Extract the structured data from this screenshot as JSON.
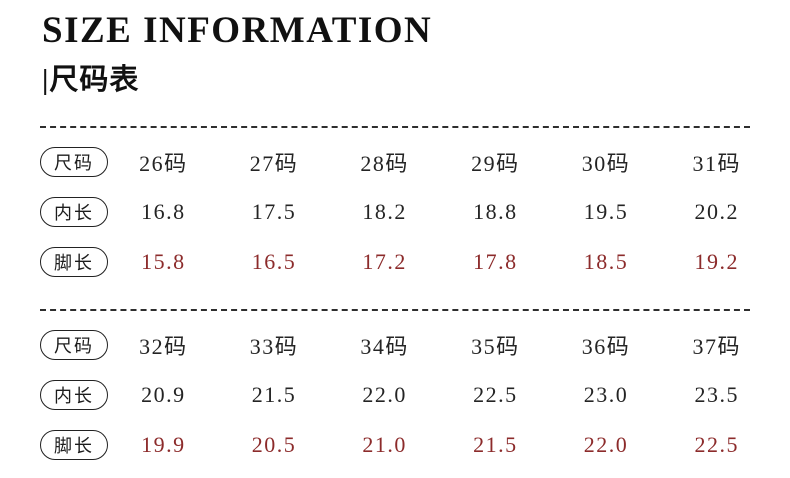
{
  "header": {
    "title": "SIZE INFORMATION",
    "subtitle": "|尺码表"
  },
  "accent_color": "#8c2b2b",
  "text_color": "#1c1c1c",
  "sections": [
    {
      "rows": [
        {
          "label": "尺码",
          "values": [
            "26码",
            "27码",
            "28码",
            "29码",
            "30码",
            "31码"
          ]
        },
        {
          "label": "内长",
          "values": [
            "16.8",
            "17.5",
            "18.2",
            "18.8",
            "19.5",
            "20.2"
          ]
        },
        {
          "label": "脚长",
          "values": [
            "15.8",
            "16.5",
            "17.2",
            "17.8",
            "18.5",
            "19.2"
          ]
        }
      ]
    },
    {
      "rows": [
        {
          "label": "尺码",
          "values": [
            "32码",
            "33码",
            "34码",
            "35码",
            "36码",
            "37码"
          ]
        },
        {
          "label": "内长",
          "values": [
            "20.9",
            "21.5",
            "22.0",
            "22.5",
            "23.0",
            "23.5"
          ]
        },
        {
          "label": "脚长",
          "values": [
            "19.9",
            "20.5",
            "21.0",
            "21.5",
            "22.0",
            "22.5"
          ]
        }
      ]
    }
  ],
  "chart_data": {
    "type": "table",
    "title": "SIZE INFORMATION |尺码表",
    "tables": [
      {
        "columns": [
          "26码",
          "27码",
          "28码",
          "29码",
          "30码",
          "31码"
        ],
        "rows": [
          {
            "label": "内长",
            "values": [
              16.8,
              17.5,
              18.2,
              18.8,
              19.5,
              20.2
            ]
          },
          {
            "label": "脚长",
            "values": [
              15.8,
              16.5,
              17.2,
              17.8,
              18.5,
              19.2
            ]
          }
        ]
      },
      {
        "columns": [
          "32码",
          "33码",
          "34码",
          "35码",
          "36码",
          "37码"
        ],
        "rows": [
          {
            "label": "内长",
            "values": [
              20.9,
              21.5,
              22.0,
              22.5,
              23.0,
              23.5
            ]
          },
          {
            "label": "脚长",
            "values": [
              19.9,
              20.5,
              21.0,
              21.5,
              22.0,
              22.5
            ]
          }
        ]
      }
    ]
  }
}
